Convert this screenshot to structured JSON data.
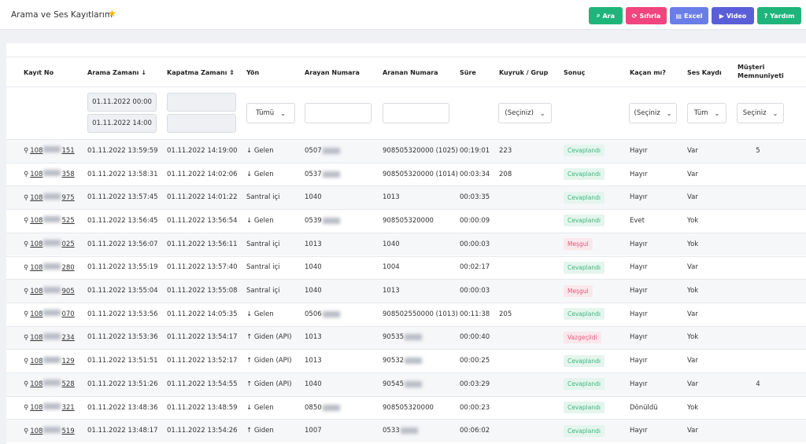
{
  "header": {
    "title": "Arama ve Ses Kayıtlarım",
    "buttons": [
      "Ara",
      "Sıfırla",
      "Excel",
      "Video",
      "Yardım"
    ]
  },
  "table": {
    "headers": [
      "Kayıt No",
      "Arama Zamanı ↓",
      "Kapatma Zamanı ⇕",
      "Yön",
      "Arayan Numara",
      "Aranan Numara",
      "Süre",
      "Kuyruk / Grup",
      "Sonuç",
      "Kaçan mı?",
      "Ses Kaydı",
      "Müşteri Memnuniyeti"
    ],
    "filters": {
      "dates": [
        "01.11.2022 00:00",
        "01.11.2022 14:00"
      ],
      "yon": "Tümü",
      "kuyruk": "(Seçiniz)",
      "kacan": "(Seçiniz",
      "ses": "Tüm",
      "memnuniyet": "Seçiniz"
    },
    "rows": [
      {
        "kayit": {
          "prefix": "108",
          "suffix": "151"
        },
        "arama": "01.11.2022 13:59:59",
        "kapatma": "01.11.2022 14:19:00",
        "yon": "↓ Gelen",
        "arayan": {
          "prefix": "0507"
        },
        "aranan": "908505320000 (1025)",
        "sure": "00:19:01",
        "kuyruk": "223",
        "sonuc": {
          "text": "Cevaplandı",
          "color": "#3bb77e"
        },
        "kacan": "Hayır",
        "ses": "Var",
        "memnuniyet": "5"
      },
      {
        "kayit": {
          "prefix": "108",
          "suffix": "358"
        },
        "arama": "01.11.2022 13:58:31",
        "kapatma": "01.11.2022 14:02:06",
        "yon": "↓ Gelen",
        "arayan": {
          "prefix": "0537"
        },
        "aranan": "908505320000 (1014)",
        "sure": "00:03:34",
        "kuyruk": "208",
        "sonuc": {
          "text": "Cevaplandı",
          "color": "#3bb77e"
        },
        "kacan": "Hayır",
        "ses": "Var",
        "memnuniyet": null
      },
      {
        "kayit": {
          "prefix": "108",
          "suffix": "975"
        },
        "arama": "01.11.2022 13:57:45",
        "kapatma": "01.11.2022 14:01:22",
        "yon": "Santral içi",
        "arayan": "1040",
        "aranan": "1013",
        "sure": "00:03:35",
        "kuyruk": null,
        "sonuc": {
          "text": "Cevaplandı",
          "color": "#3bb77e"
        },
        "kacan": "Hayır",
        "ses": "Var",
        "memnuniyet": null
      },
      {
        "kayit": {
          "prefix": "108",
          "suffix": "525"
        },
        "arama": "01.11.2022 13:56:45",
        "kapatma": "01.11.2022 13:56:54",
        "yon": "↓ Gelen",
        "arayan": {
          "prefix": "0539"
        },
        "aranan": "908505320000",
        "sure": "00:00:09",
        "kuyruk": null,
        "sonuc": {
          "text": "Cevaplandı",
          "color": "#3bb77e"
        },
        "kacan": "Evet",
        "ses": "Yok",
        "memnuniyet": null
      },
      {
        "kayit": {
          "prefix": "108",
          "suffix": "025"
        },
        "arama": "01.11.2022 13:56:07",
        "kapatma": "01.11.2022 13:56:11",
        "yon": "Santral içi",
        "arayan": "1013",
        "aranan": "1040",
        "sure": "00:00:03",
        "kuyruk": null,
        "sonuc": {
          "text": "Meşgul",
          "color": "#e5577a"
        },
        "kacan": "Hayır",
        "ses": "Yok",
        "memnuniyet": null
      },
      {
        "kayit": {
          "prefix": "108",
          "suffix": "280"
        },
        "arama": "01.11.2022 13:55:19",
        "kapatma": "01.11.2022 13:57:40",
        "yon": "Santral içi",
        "arayan": "1040",
        "aranan": "1004",
        "sure": "00:02:17",
        "kuyruk": null,
        "sonuc": {
          "text": "Cevaplandı",
          "color": "#3bb77e"
        },
        "kacan": "Hayır",
        "ses": "Var",
        "memnuniyet": null
      },
      {
        "kayit": {
          "prefix": "108",
          "suffix": "905"
        },
        "arama": "01.11.2022 13:55:04",
        "kapatma": "01.11.2022 13:55:08",
        "yon": "Santral içi",
        "arayan": "1040",
        "aranan": "1013",
        "sure": "00:00:03",
        "kuyruk": null,
        "sonuc": {
          "text": "Meşgul",
          "color": "#e5577a"
        },
        "kacan": "Hayır",
        "ses": "Yok",
        "memnuniyet": null
      },
      {
        "kayit": {
          "prefix": "108",
          "suffix": "070"
        },
        "arama": "01.11.2022 13:53:56",
        "kapatma": "01.11.2022 14:05:35",
        "yon": "↓ Gelen",
        "arayan": {
          "prefix": "0506"
        },
        "aranan": "908502550000 (1013)",
        "sure": "00:11:38",
        "kuyruk": "205",
        "sonuc": {
          "text": "Cevaplandı",
          "color": "#3bb77e"
        },
        "kacan": "Hayır",
        "ses": "Var",
        "memnuniyet": null
      },
      {
        "kayit": {
          "prefix": "108",
          "suffix": "234"
        },
        "arama": "01.11.2022 13:53:36",
        "kapatma": "01.11.2022 13:54:17",
        "yon": "↑ Giden (API)",
        "arayan": "1013",
        "aranan": {
          "prefix": "90535"
        },
        "sure": "00:00:40",
        "kuyruk": null,
        "sonuc": {
          "text": "Vazgeçildi",
          "color": "#e5577a"
        },
        "kacan": "Hayır",
        "ses": "Yok",
        "memnuniyet": null
      },
      {
        "kayit": {
          "prefix": "108",
          "suffix": "129"
        },
        "arama": "01.11.2022 13:51:51",
        "kapatma": "01.11.2022 13:52:17",
        "yon": "↑ Giden (API)",
        "arayan": "1013",
        "aranan": {
          "prefix": "90532"
        },
        "sure": "00:00:25",
        "kuyruk": null,
        "sonuc": {
          "text": "Cevaplandı",
          "color": "#3bb77e"
        },
        "kacan": "Hayır",
        "ses": "Var",
        "memnuniyet": null
      },
      {
        "kayit": {
          "prefix": "108",
          "suffix": "528"
        },
        "arama": "01.11.2022 13:51:26",
        "kapatma": "01.11.2022 13:54:55",
        "yon": "↑ Giden (API)",
        "arayan": "1040",
        "aranan": {
          "prefix": "90545"
        },
        "sure": "00:03:29",
        "kuyruk": null,
        "sonuc": {
          "text": "Cevaplandı",
          "color": "#3bb77e"
        },
        "kacan": "Hayır",
        "ses": "Var",
        "memnuniyet": "4"
      },
      {
        "kayit": {
          "prefix": "108",
          "suffix": "321"
        },
        "arama": "01.11.2022 13:48:36",
        "kapatma": "01.11.2022 13:48:59",
        "yon": "↓ Gelen",
        "arayan": {
          "prefix": "0850"
        },
        "aranan": "908505320000",
        "sure": "00:00:23",
        "kuyruk": null,
        "sonuc": {
          "text": "Cevaplandı",
          "color": "#3bb77e"
        },
        "kacan": "Dönüldü",
        "ses": "Yok",
        "memnuniyet": null
      },
      {
        "kayit": {
          "prefix": "108",
          "suffix": "519"
        },
        "arama": "01.11.2022 13:48:17",
        "kapatma": "01.11.2022 13:54:26",
        "yon": "↑ Giden",
        "arayan": "1007",
        "aranan": {
          "prefix": "0533"
        },
        "sure": "00:06:02",
        "kuyruk": null,
        "sonuc": {
          "text": "Cevaplandı",
          "color": "#3bb77e"
        },
        "kacan": "Hayır",
        "ses": "Var",
        "memnuniyet": null
      }
    ]
  }
}
